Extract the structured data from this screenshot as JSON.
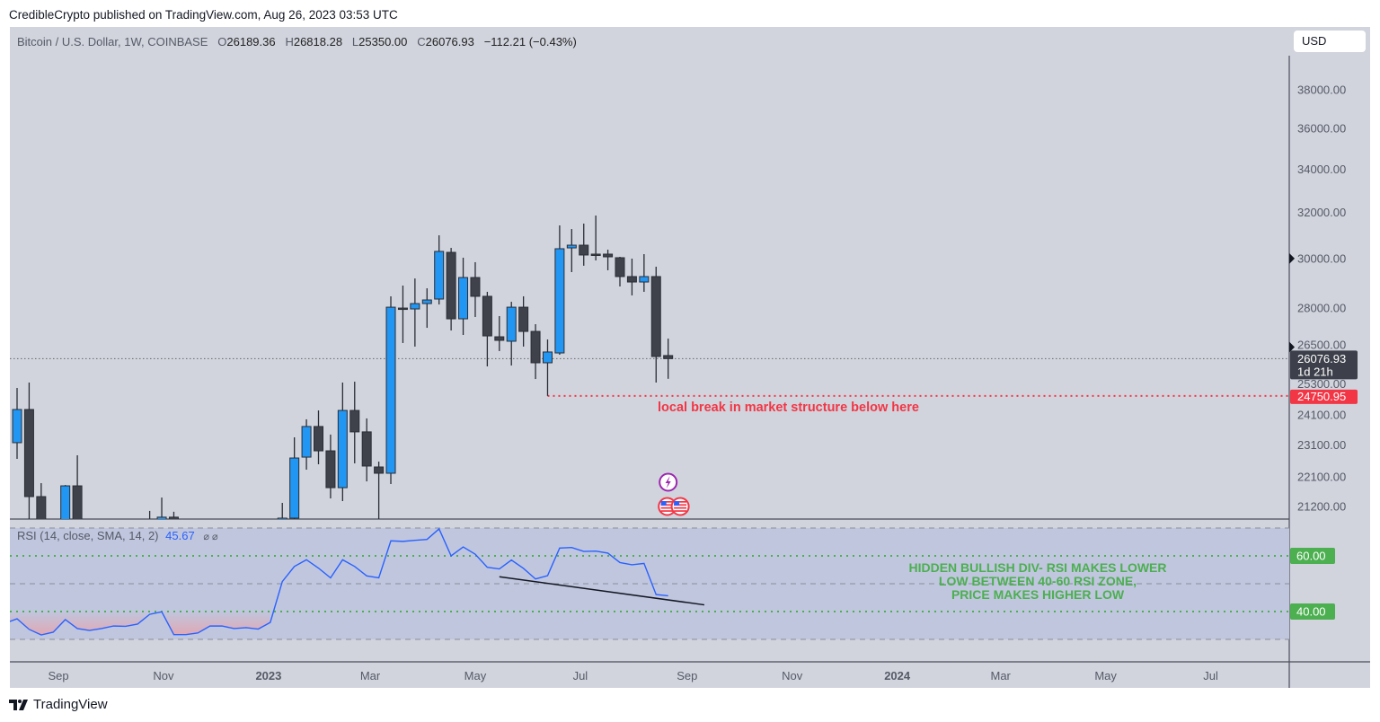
{
  "published": "CredibleCrypto published on TradingView.com, Aug 26, 2023 03:53 UTC",
  "legend": {
    "symbol": "Bitcoin / U.S. Dollar, 1W, COINBASE",
    "o_label": "O",
    "o": "26189.36",
    "h_label": "H",
    "h": "26818.28",
    "l_label": "L",
    "l": "25350.00",
    "c_label": "C",
    "c": "26076.93",
    "change": "−112.21 (−0.43%)"
  },
  "currency_button": "USD",
  "price_axis": {
    "scale": "log",
    "ticks": [
      "38000.00",
      "36000.00",
      "34000.00",
      "32000.00",
      "30000.00",
      "28000.00",
      "26500.00",
      "25300.00",
      "24100.00",
      "23100.00",
      "22100.00",
      "21200.00"
    ],
    "last_price": "26076.93",
    "countdown": "1d 21h",
    "level_label": "24750.95"
  },
  "time_axis": {
    "ticks": [
      {
        "label": "Sep",
        "date": "2022-09-01",
        "bold": false
      },
      {
        "label": "Nov",
        "date": "2022-11-01",
        "bold": false
      },
      {
        "label": "2023",
        "date": "2023-01-01",
        "bold": true
      },
      {
        "label": "Mar",
        "date": "2023-03-01",
        "bold": false
      },
      {
        "label": "May",
        "date": "2023-05-01",
        "bold": false
      },
      {
        "label": "Jul",
        "date": "2023-07-01",
        "bold": false
      },
      {
        "label": "Sep",
        "date": "2023-09-01",
        "bold": false
      },
      {
        "label": "Nov",
        "date": "2023-11-01",
        "bold": false
      },
      {
        "label": "2024",
        "date": "2024-01-01",
        "bold": true
      },
      {
        "label": "Mar",
        "date": "2024-03-01",
        "bold": false
      },
      {
        "label": "May",
        "date": "2024-05-01",
        "bold": false
      },
      {
        "label": "Jul",
        "date": "2024-07-01",
        "bold": false
      }
    ]
  },
  "colors": {
    "up": "#2196f3",
    "down": "#40424b",
    "rsi": "#2962ff",
    "level": "#f23645",
    "green": "#4caf50",
    "band": "#c0c6de"
  },
  "chart_data": {
    "type": "candlestick",
    "interval": "1W",
    "candles": [
      {
        "date": "2022-08-08",
        "o": 23180,
        "h": 25027,
        "l": 22660,
        "c": 24283
      },
      {
        "date": "2022-08-15",
        "o": 24283,
        "h": 25216,
        "l": 20516,
        "c": 21494
      },
      {
        "date": "2022-08-22",
        "o": 21494,
        "h": 21903,
        "l": 19500,
        "c": 19800
      },
      {
        "date": "2022-09-05",
        "o": 19500,
        "h": 21846,
        "l": 18600,
        "c": 21820
      },
      {
        "date": "2022-09-12",
        "o": 21820,
        "h": 22774,
        "l": 18300,
        "c": 19400
      },
      {
        "date": "2022-10-24",
        "o": 19600,
        "h": 21068,
        "l": 19300,
        "c": 20700
      },
      {
        "date": "2022-10-31",
        "o": 20400,
        "h": 21466,
        "l": 20100,
        "c": 20884
      },
      {
        "date": "2022-11-07",
        "o": 20884,
        "h": 21041,
        "l": 15600,
        "c": 16800
      },
      {
        "date": "2023-01-09",
        "o": 17900,
        "h": 21306,
        "l": 17300,
        "c": 20855
      },
      {
        "date": "2023-01-16",
        "o": 20855,
        "h": 23355,
        "l": 20500,
        "c": 22688
      },
      {
        "date": "2023-01-23",
        "o": 22716,
        "h": 23951,
        "l": 22320,
        "c": 23712
      },
      {
        "date": "2023-01-30",
        "o": 23712,
        "h": 24251,
        "l": 22490,
        "c": 22917
      },
      {
        "date": "2023-02-06",
        "o": 22917,
        "h": 23445,
        "l": 21439,
        "c": 21765
      },
      {
        "date": "2023-02-13",
        "o": 21765,
        "h": 25216,
        "l": 21359,
        "c": 24251
      },
      {
        "date": "2023-02-20",
        "o": 24251,
        "h": 25248,
        "l": 22518,
        "c": 23534
      },
      {
        "date": "2023-02-27",
        "o": 23534,
        "h": 23981,
        "l": 21957,
        "c": 22434
      },
      {
        "date": "2023-03-06",
        "o": 22405,
        "h": 22574,
        "l": 19600,
        "c": 22209
      },
      {
        "date": "2023-03-13",
        "o": 22209,
        "h": 28455,
        "l": 21875,
        "c": 28025
      },
      {
        "date": "2023-03-20",
        "o": 27990,
        "h": 28887,
        "l": 26653,
        "c": 27956
      },
      {
        "date": "2023-03-27",
        "o": 27956,
        "h": 29175,
        "l": 26520,
        "c": 28167
      },
      {
        "date": "2023-04-03",
        "o": 28167,
        "h": 28777,
        "l": 27227,
        "c": 28310
      },
      {
        "date": "2023-04-10",
        "o": 28346,
        "h": 30993,
        "l": 28131,
        "c": 30302
      },
      {
        "date": "2023-04-17",
        "o": 30262,
        "h": 30452,
        "l": 27125,
        "c": 27572
      },
      {
        "date": "2023-04-24",
        "o": 27572,
        "h": 30036,
        "l": 26956,
        "c": 29214
      },
      {
        "date": "2023-05-01",
        "o": 29214,
        "h": 29848,
        "l": 27643,
        "c": 28455
      },
      {
        "date": "2023-05-08",
        "o": 28455,
        "h": 28634,
        "l": 25794,
        "c": 26920
      },
      {
        "date": "2023-05-15",
        "o": 26887,
        "h": 27677,
        "l": 26354,
        "c": 26753
      },
      {
        "date": "2023-05-22",
        "o": 26720,
        "h": 28238,
        "l": 25826,
        "c": 28025
      },
      {
        "date": "2023-05-29",
        "o": 28025,
        "h": 28455,
        "l": 26520,
        "c": 27090
      },
      {
        "date": "2023-06-05",
        "o": 27090,
        "h": 27365,
        "l": 25343,
        "c": 25925
      },
      {
        "date": "2023-06-12",
        "o": 25925,
        "h": 26786,
        "l": 24750.95,
        "c": 26320
      },
      {
        "date": "2023-06-19",
        "o": 26285,
        "h": 31427,
        "l": 26220,
        "c": 30416
      },
      {
        "date": "2023-06-26",
        "o": 30452,
        "h": 31266,
        "l": 29437,
        "c": 30568
      },
      {
        "date": "2023-07-03",
        "o": 30568,
        "h": 31506,
        "l": 29700,
        "c": 30150
      },
      {
        "date": "2023-07-10",
        "o": 30187,
        "h": 31864,
        "l": 29922,
        "c": 30150
      },
      {
        "date": "2023-07-17",
        "o": 30187,
        "h": 30376,
        "l": 29512,
        "c": 30073
      },
      {
        "date": "2023-07-24",
        "o": 30036,
        "h": 30073,
        "l": 28850,
        "c": 29253
      },
      {
        "date": "2023-07-31",
        "o": 29253,
        "h": 29997,
        "l": 28491,
        "c": 29031
      },
      {
        "date": "2023-08-07",
        "o": 29031,
        "h": 30187,
        "l": 28634,
        "c": 29253
      },
      {
        "date": "2023-08-14",
        "o": 29253,
        "h": 29660,
        "l": 25216,
        "c": 26154
      },
      {
        "date": "2023-08-21",
        "o": 26189.36,
        "h": 26818.28,
        "l": 25350.0,
        "c": 26076.93
      }
    ],
    "level_line": {
      "price": 24750.95,
      "from": "2023-06-12"
    },
    "rsi": {
      "label": "RSI (14, close, SMA, 14, 2)",
      "current": "45.67",
      "extra": "⌀ ⌀",
      "start": "2022-08-01",
      "values": [
        35.8,
        37.4,
        33.6,
        31.6,
        32.6,
        37.1,
        33.9,
        33.2,
        33.9,
        34.8,
        34.7,
        35.5,
        39.0,
        39.9,
        31.7,
        31.7,
        32.3,
        34.8,
        34.8,
        33.9,
        34.2,
        33.7,
        36.1,
        50.8,
        56.2,
        58.6,
        55.6,
        52.1,
        58.6,
        56.2,
        52.8,
        52.1,
        65.4,
        65.2,
        65.6,
        65.9,
        69.7,
        60.0,
        63.2,
        60.6,
        55.9,
        55.3,
        58.5,
        55.5,
        51.7,
        52.9,
        62.8,
        63.0,
        61.6,
        61.7,
        61.0,
        57.6,
        56.8,
        57.3,
        46.1,
        45.67
      ],
      "band": [
        30,
        70
      ],
      "levels": [
        {
          "value": 60,
          "label": "60.00"
        },
        {
          "value": 40,
          "label": "40.00"
        }
      ],
      "middle": 50,
      "trendline": [
        {
          "date": "2023-05-15",
          "value": 52.5
        },
        {
          "date": "2023-09-11",
          "value": 42.4
        }
      ]
    },
    "annotations": {
      "price_note": "local break in market structure below here",
      "rsi_note": [
        "HIDDEN BULLISH DIV- RSI MAKES LOWER",
        "LOW BETWEEN 40-60 RSI ZONE,",
        "PRICE MAKES HIGHER LOW"
      ]
    },
    "events": [
      {
        "icon": "lightning-icon",
        "date": "2023-08-21"
      },
      {
        "icon": "us-flag-icon",
        "date": "2023-08-21"
      },
      {
        "icon": "us-flag-icon",
        "date": "2023-08-28"
      }
    ]
  },
  "brand": "TradingView"
}
